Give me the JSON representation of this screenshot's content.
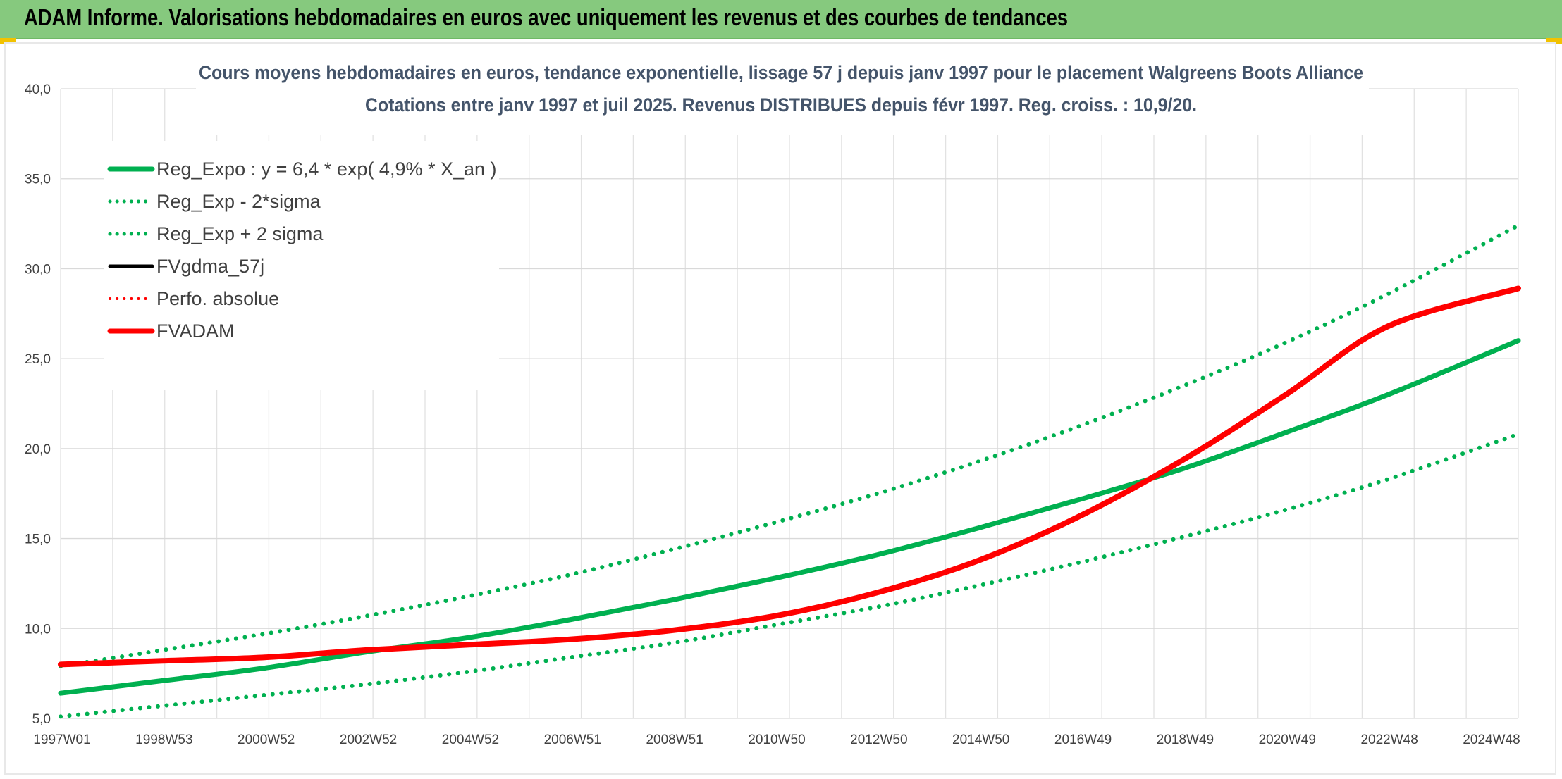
{
  "header": {
    "title": "ADAM Informe. Valorisations hebdomadaires en euros avec uniquement les revenus et des courbes de tendances"
  },
  "chart_data": {
    "type": "line",
    "title_line1": "Cours moyens hebdomadaires en euros, tendance exponentielle, lissage 57 j depuis janv 1997 pour le placement Walgreens Boots Alliance",
    "title_line2": "Cotations entre janv 1997 et juil 2025. Revenus DISTRIBUES depuis févr 1997. Reg. croiss. : 10,9/20.",
    "xlabel": "",
    "ylabel": "",
    "x_range": [
      1997.0,
      2025.55
    ],
    "ylim": [
      5,
      40
    ],
    "y_ticks": [
      "5,0",
      "10,0",
      "15,0",
      "20,0",
      "25,0",
      "30,0",
      "35,0",
      "40,0"
    ],
    "x_ticks": [
      "1997W01",
      "1998W53",
      "2000W52",
      "2002W52",
      "2004W52",
      "2006W51",
      "2008W51",
      "2010W50",
      "2012W50",
      "2014W50",
      "2016W49",
      "2018W49",
      "2020W49",
      "2022W48",
      "2024W48"
    ],
    "grid": true,
    "legend_position": "top-left",
    "legend": [
      "Reg_Expo : y = 6,4 * exp( 4,9% *  X_an )",
      "Reg_Exp - 2*sigma",
      "Reg_Exp + 2 sigma",
      "FVgdma_57j",
      "Perfo. absolue",
      "FVADAM"
    ],
    "x": [
      1997.0,
      1999.0,
      2001.0,
      2003.0,
      2005.0,
      2007.0,
      2009.0,
      2011.0,
      2013.0,
      2015.0,
      2017.0,
      2019.0,
      2021.0,
      2023.0,
      2025.55
    ],
    "series": [
      {
        "name": "Reg_Expo : y = 6,4 * exp( 4,9% *  X_an )",
        "color": "#00b050",
        "style": "solid",
        "values": [
          6.4,
          7.1,
          7.8,
          8.7,
          9.5,
          10.5,
          11.6,
          12.8,
          14.1,
          15.6,
          17.2,
          18.9,
          20.9,
          23.0,
          26.0
        ]
      },
      {
        "name": "Reg_Exp - 2*sigma",
        "color": "#00b050",
        "style": "dotted",
        "values": [
          5.1,
          5.7,
          6.3,
          6.9,
          7.6,
          8.4,
          9.2,
          10.2,
          11.2,
          12.4,
          13.7,
          15.1,
          16.6,
          18.3,
          20.8
        ]
      },
      {
        "name": "Reg_Exp + 2 sigma",
        "color": "#00b050",
        "style": "dotted",
        "values": [
          7.9,
          8.8,
          9.7,
          10.7,
          11.8,
          13.0,
          14.4,
          15.9,
          17.5,
          19.3,
          21.3,
          23.5,
          25.9,
          28.6,
          32.4
        ]
      },
      {
        "name": "FVADAM",
        "color": "#ff0000",
        "style": "solid",
        "values": [
          8.0,
          8.2,
          8.4,
          8.8,
          9.1,
          9.4,
          9.9,
          10.7,
          12.0,
          13.8,
          16.3,
          19.4,
          23.0,
          26.8,
          28.9
        ]
      }
    ]
  }
}
